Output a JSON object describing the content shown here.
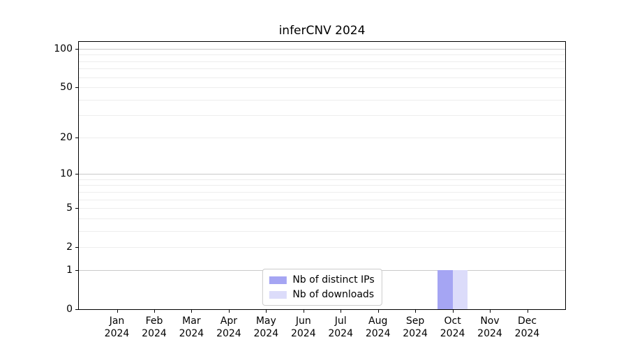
{
  "chart_data": {
    "type": "bar",
    "title": "inferCNV 2024",
    "categories": [
      "Jan",
      "Feb",
      "Mar",
      "Apr",
      "May",
      "Jun",
      "Jul",
      "Aug",
      "Sep",
      "Oct",
      "Nov",
      "Dec"
    ],
    "year": "2024",
    "series": [
      {
        "name": "Nb of distinct IPs",
        "color": "#a5a5f3",
        "values": [
          0,
          0,
          0,
          0,
          0,
          0,
          0,
          0,
          0,
          1,
          0,
          0
        ]
      },
      {
        "name": "Nb of downloads",
        "color": "#dcdcfa",
        "values": [
          0,
          0,
          0,
          0,
          0,
          0,
          0,
          0,
          0,
          1,
          0,
          0
        ]
      }
    ],
    "yticks": [
      0,
      1,
      2,
      5,
      10,
      20,
      50,
      100
    ],
    "scale": "log1p",
    "ylim": [
      0,
      113
    ],
    "xlabel": "",
    "ylabel": "",
    "legend_position": "lower center",
    "grid": {
      "major": [
        1,
        10,
        100
      ],
      "minor": [
        2,
        3,
        4,
        5,
        6,
        7,
        8,
        9,
        20,
        30,
        40,
        50,
        60,
        70,
        80,
        90
      ],
      "major_color": "#c9c9c9",
      "minor_color": "#ededed"
    },
    "axis_color": "#000000",
    "background_color": "#ffffff"
  }
}
